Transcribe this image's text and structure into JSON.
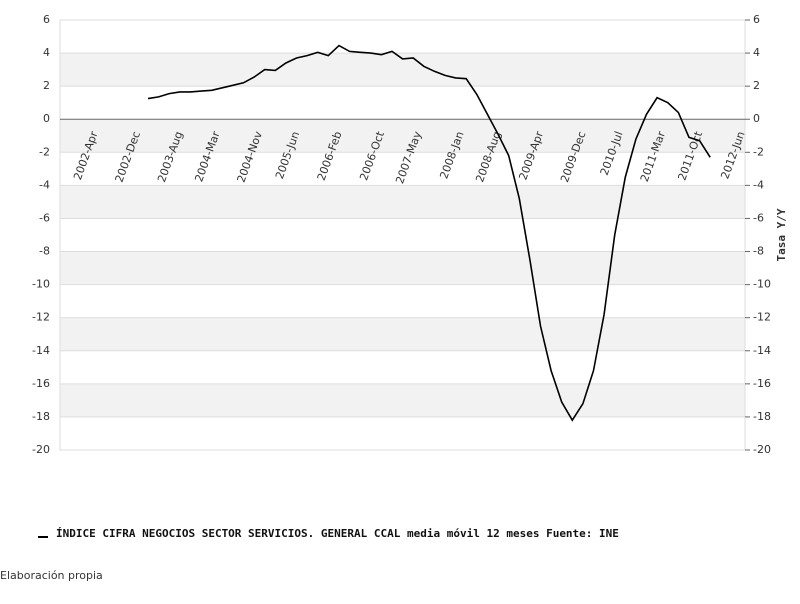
{
  "chart_data": {
    "type": "line",
    "y2_label": "Tasa Y/Y",
    "x": [
      "2003-Feb",
      "2003-Apr",
      "2003-Jun",
      "2003-Aug",
      "2003-Oct",
      "2003-Dec",
      "2004-Feb",
      "2004-Apr",
      "2004-Jun",
      "2004-Aug",
      "2004-Oct",
      "2004-Dec",
      "2005-Feb",
      "2005-Apr",
      "2005-Jun",
      "2005-Aug",
      "2005-Oct",
      "2005-Dec",
      "2006-Feb",
      "2006-Apr",
      "2006-Jun",
      "2006-Aug",
      "2006-Oct",
      "2006-Dec",
      "2007-Feb",
      "2007-Apr",
      "2007-Jun",
      "2007-Aug",
      "2007-Oct",
      "2007-Dec",
      "2008-Feb",
      "2008-Apr",
      "2008-Jun",
      "2008-Aug",
      "2008-Oct",
      "2008-Dec",
      "2009-Feb",
      "2009-Apr",
      "2009-Jun",
      "2009-Aug",
      "2009-Oct",
      "2009-Dec",
      "2010-Feb",
      "2010-Apr",
      "2010-Jun",
      "2010-Aug",
      "2010-Oct",
      "2010-Dec",
      "2011-Feb",
      "2011-Apr",
      "2011-Jun",
      "2011-Aug",
      "2011-Oct",
      "2011-Dec"
    ],
    "series": [
      {
        "name": "ÍNDICE CIFRA NEGOCIOS SECTOR SERVICIOS. GENERAL CCAL media móvil 12 meses  Fuente: INE",
        "color": "#000000",
        "values": [
          1.25,
          1.35,
          1.55,
          1.65,
          1.65,
          1.7,
          1.75,
          1.9,
          2.05,
          2.2,
          2.55,
          3.0,
          2.95,
          3.4,
          3.7,
          3.85,
          4.05,
          3.85,
          4.45,
          4.1,
          4.05,
          4.0,
          3.9,
          4.1,
          3.65,
          3.7,
          3.2,
          2.9,
          2.65,
          2.5,
          2.45,
          1.5,
          0.3,
          -0.9,
          -2.2,
          -4.8,
          -8.5,
          -12.5,
          -15.2,
          -17.1,
          -18.2,
          -17.2,
          -15.2,
          -11.8,
          -7.0,
          -3.5,
          -1.2,
          0.3,
          1.3,
          1.0,
          0.4,
          -1.1,
          -1.3,
          -2.3
        ]
      }
    ],
    "xticks": [
      "2002-Apr",
      "2002-Dec",
      "2003-Aug",
      "2004-Mar",
      "2004-Nov",
      "2005-Jun",
      "2006-Feb",
      "2006-Oct",
      "2007-May",
      "2008-Jan",
      "2008-Aug",
      "2009-Apr",
      "2009-Dec",
      "2010-Jul",
      "2011-Mar",
      "2011-Oct",
      "2012-Jun"
    ],
    "ylim": [
      -20,
      6
    ],
    "yticks": [
      -20,
      -18,
      -16,
      -14,
      -12,
      -10,
      -8,
      -6,
      -4,
      -2,
      0,
      2,
      4,
      6
    ],
    "y2lim": [
      -20,
      6
    ],
    "y2ticks": [
      -20,
      -18,
      -16,
      -14,
      -12,
      -10,
      -8,
      -6,
      -4,
      -2,
      0,
      2,
      4,
      6
    ],
    "grid": true,
    "legend": "bottom",
    "footer": "Elaboración propia"
  }
}
